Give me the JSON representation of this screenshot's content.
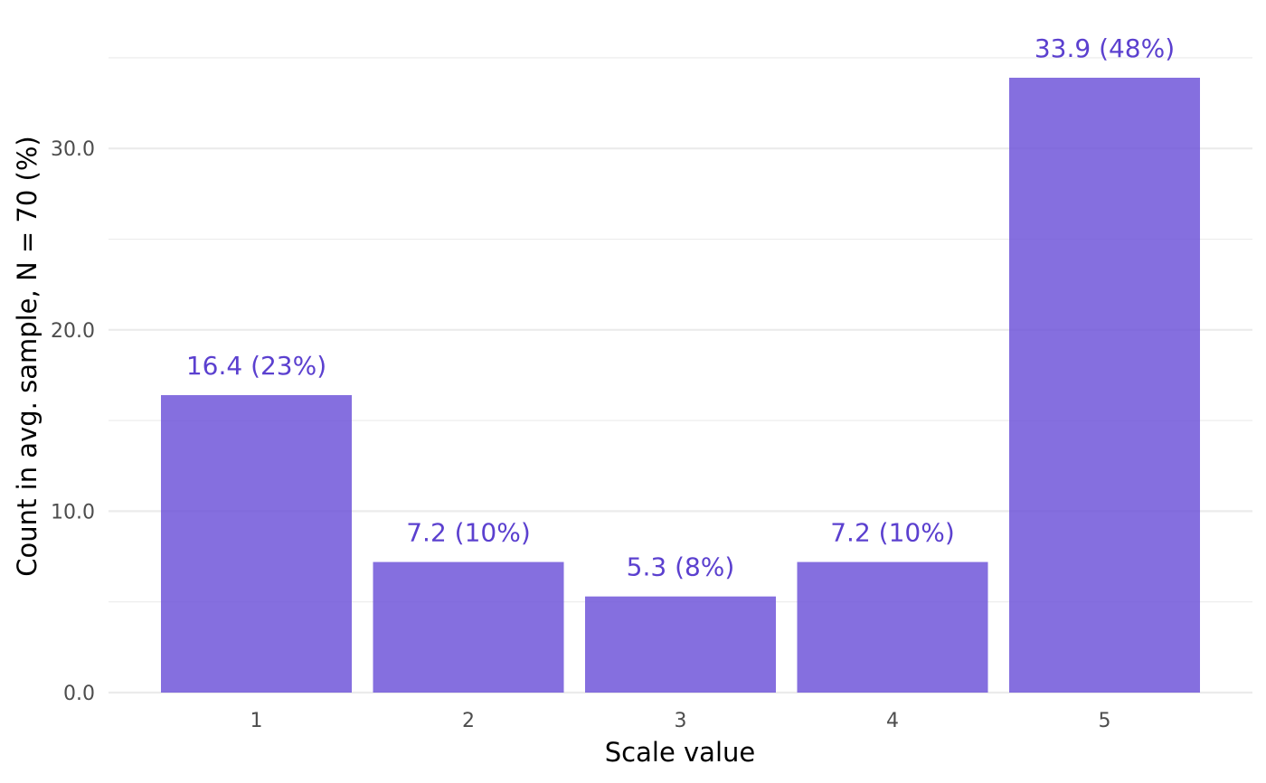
{
  "chart_data": {
    "type": "bar",
    "categories": [
      "1",
      "2",
      "3",
      "4",
      "5"
    ],
    "values": [
      16.4,
      7.2,
      5.3,
      7.2,
      33.9
    ],
    "data_labels": [
      "16.4 (23%)",
      "7.2 (10%)",
      "5.3 (8%)",
      "7.2 (10%)",
      "33.9 (48%)"
    ],
    "xlabel": "Scale value",
    "ylabel": "Count in avg. sample, N = 70 (%)",
    "ylim": [
      0,
      35
    ],
    "y_ticks": [
      0,
      10,
      20,
      30
    ],
    "y_tick_labels": [
      "0.0",
      "10.0",
      "20.0",
      "30.0"
    ],
    "grid": true,
    "bar_color": "#6a4fd8",
    "label_color": "#5b40cf"
  }
}
